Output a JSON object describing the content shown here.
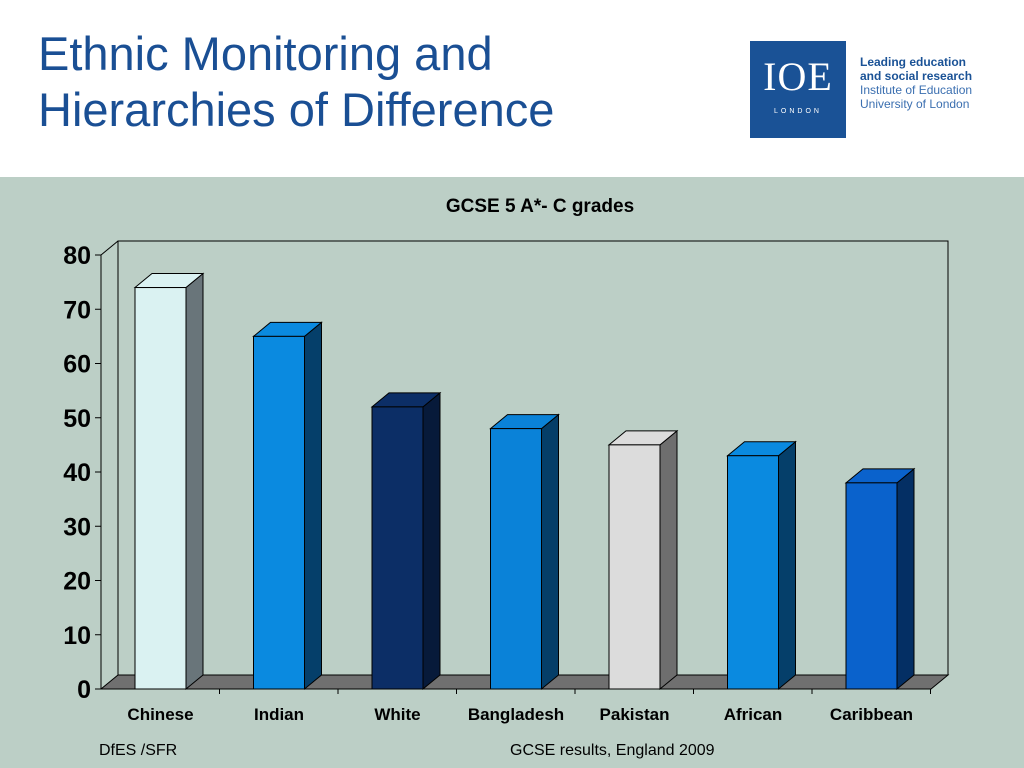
{
  "slide": {
    "title_lines": [
      "Ethnic Monitoring and",
      "Hierarchies of Difference"
    ]
  },
  "logo": {
    "mark": "IOE",
    "sub": "LONDON",
    "line1": "Leading education",
    "line2": "and social research",
    "line3": "Institute of Education",
    "line4": "University of London"
  },
  "chart_data": {
    "type": "bar",
    "title": "GCSE 5 A*- C grades",
    "xlabel": "",
    "ylabel": "",
    "categories": [
      "Chinese",
      "Indian",
      "White",
      "Bangladesh",
      "Pakistan",
      "African",
      "Caribbean"
    ],
    "values": [
      74,
      65,
      52,
      48,
      45,
      43,
      38
    ],
    "ylim": [
      0,
      80
    ],
    "yticks": [
      0,
      10,
      20,
      30,
      40,
      50,
      60,
      70,
      80
    ],
    "grid": false,
    "legend": "none",
    "colors": [
      "#daf2f2",
      "#0a8ae0",
      "#0c2e66",
      "#0a82d8",
      "#dcdcdc",
      "#0a8ae0",
      "#0a62cc"
    ],
    "side_colors": [
      "#69757a",
      "#053f6a",
      "#071a3a",
      "#053e68",
      "#6e6e6e",
      "#053f6a",
      "#042f64"
    ]
  },
  "footer": {
    "source": "DfES /SFR",
    "caption": "GCSE results, England 2009"
  }
}
